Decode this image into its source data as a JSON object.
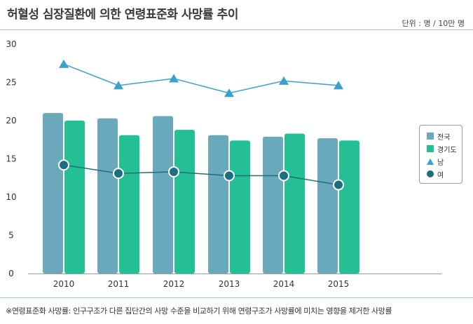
{
  "header": {
    "title": "허혈성 심장질환에 의한 연령표준화 사망률 추이",
    "unit": "단위 : 명 / 10만 명"
  },
  "footnote": "※연령표준화 사망률: 인구구조가 다른 집단간의 사망 수준을 비교하기 위해 연령구조가 사망률에 미치는 영향을 제거한 사망률",
  "colors": {
    "national_bar": "#6aa9bc",
    "gyeonggi_bar": "#25bf96",
    "male_line": "#3aa0cc",
    "female_line": "#1d6e7e"
  },
  "chart_data": {
    "type": "bar+line",
    "categories": [
      "2010",
      "2011",
      "2012",
      "2013",
      "2014",
      "2015"
    ],
    "y_ticks": [
      "0",
      "5",
      "10",
      "15",
      "20",
      "25",
      "30"
    ],
    "ylim": [
      0,
      30
    ],
    "grid": false,
    "legend_position": "right",
    "series": [
      {
        "name": "전국",
        "kind": "bar",
        "color": "#6aa9bc",
        "values": [
          21.0,
          20.3,
          20.6,
          18.1,
          17.9,
          17.7
        ]
      },
      {
        "name": "경기도",
        "kind": "bar",
        "color": "#25bf96",
        "values": [
          20.0,
          18.1,
          18.8,
          17.4,
          18.3,
          17.4
        ]
      },
      {
        "name": "남",
        "kind": "line",
        "marker": "triangle",
        "color": "#3aa0cc",
        "values": [
          27.4,
          24.6,
          25.5,
          23.6,
          25.2,
          24.6
        ]
      },
      {
        "name": "여",
        "kind": "line",
        "marker": "circle",
        "color": "#1d6e7e",
        "values": [
          14.2,
          13.1,
          13.3,
          12.8,
          12.8,
          11.6
        ]
      }
    ]
  }
}
